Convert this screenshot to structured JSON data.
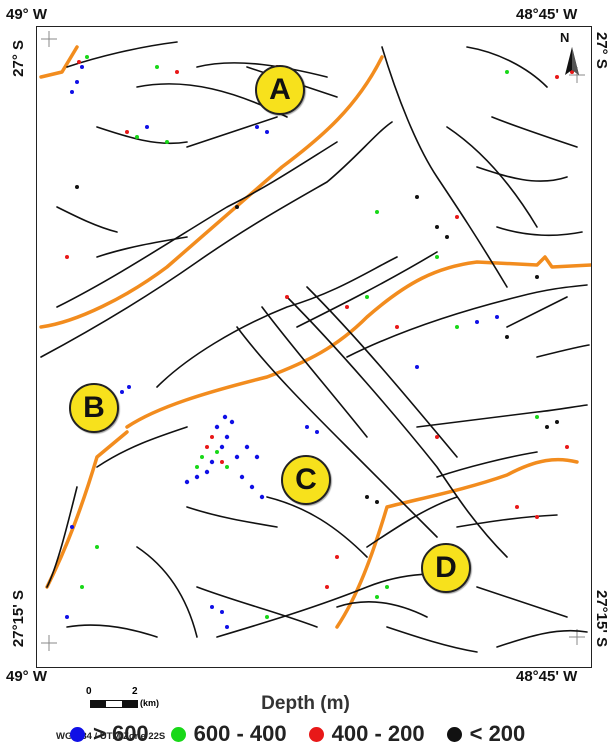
{
  "coords": {
    "top_left_lon": "49° W",
    "top_right_lon": "48°45' W",
    "bottom_left_lon": "49° W",
    "bottom_right_lon": "48°45' W",
    "left_top_lat": "27° S",
    "right_top_lat": "27° S",
    "left_bottom_lat": "27°15' S",
    "right_bottom_lat": "27°15' S"
  },
  "north_arrow": {
    "label": "N"
  },
  "regions": [
    "A",
    "B",
    "C",
    "D"
  ],
  "scale": {
    "zero": "0",
    "two": "2",
    "unit": "(km)"
  },
  "crs": "WGS 84 / UTM Zone 22S",
  "legend": {
    "title": "Depth (m)",
    "items": [
      {
        "label": "> 600",
        "color": "#1010e6"
      },
      {
        "label": "600 - 400",
        "color": "#18d818"
      },
      {
        "label": "400 - 200",
        "color": "#e81818"
      },
      {
        "label": "< 200",
        "color": "#111111"
      }
    ]
  },
  "colors": {
    "lineaments": "#111111",
    "boundary": "#f28c1e",
    "region_fill": "#f7e11c"
  }
}
